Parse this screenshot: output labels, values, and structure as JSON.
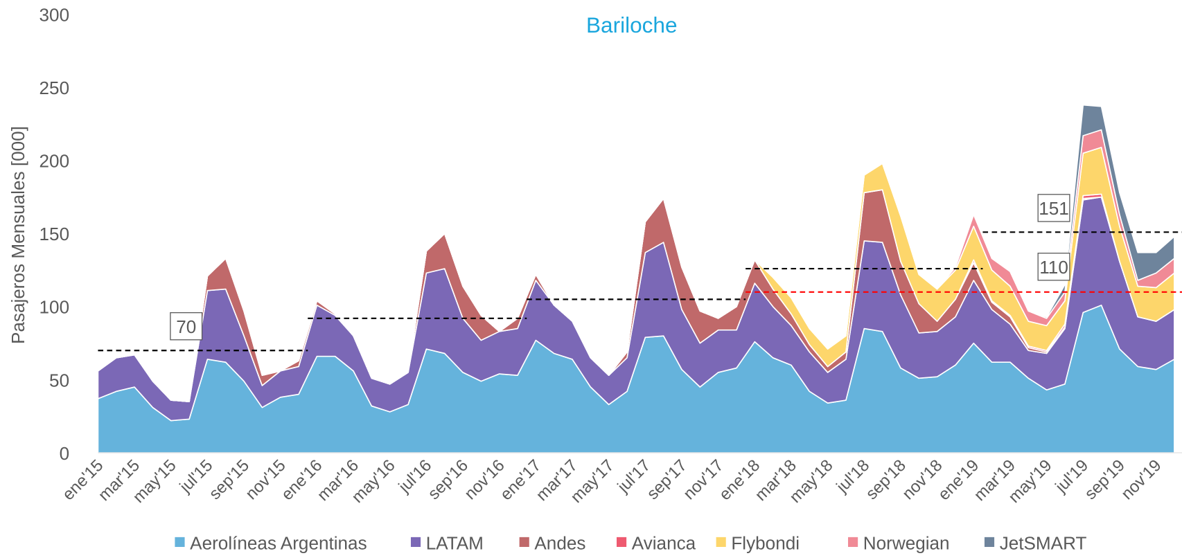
{
  "chart_data": {
    "type": "stacked_area",
    "title": "Bariloche",
    "ylabel": "Pasajeros Mensuales [000]",
    "ylim": [
      0,
      300
    ],
    "yticks": [
      0,
      50,
      100,
      150,
      200,
      250,
      300
    ],
    "grid": false,
    "legend": "bottom",
    "categories": [
      "ene'15",
      null,
      "mar'15",
      null,
      "may'15",
      null,
      "jul'15",
      null,
      "sep'15",
      null,
      "nov'15",
      null,
      "ene'16",
      null,
      "mar'16",
      null,
      "may'16",
      null,
      "jul'16",
      null,
      "sep'16",
      null,
      "nov'16",
      null,
      "ene'17",
      null,
      "mar'17",
      null,
      "may'17",
      null,
      "jul'17",
      null,
      "sep'17",
      null,
      "nov'17",
      null,
      "ene'18",
      null,
      "mar'18",
      null,
      "may'18",
      null,
      "jul'18",
      null,
      "sep'18",
      null,
      "nov'18",
      null,
      "ene'19",
      null,
      "mar'19",
      null,
      "may'19",
      null,
      "jul'19",
      null,
      "sep'19",
      null,
      "nov'19",
      null
    ],
    "series": [
      {
        "name": "Aerolíneas Argentinas",
        "color": "#65b3dc",
        "values": [
          37,
          42,
          45,
          31,
          22,
          23,
          64,
          62,
          49,
          31,
          38,
          40,
          66,
          66,
          56,
          32,
          28,
          33,
          71,
          68,
          55,
          49,
          54,
          53,
          77,
          68,
          64,
          45,
          33,
          42,
          79,
          80,
          57,
          45,
          55,
          58,
          76,
          65,
          60,
          42,
          34,
          36,
          85,
          83,
          58,
          51,
          52,
          60,
          75,
          62,
          62,
          51,
          43,
          47,
          96,
          101,
          71,
          59,
          57,
          64
        ]
      },
      {
        "name": "LATAM",
        "color": "#7b68b6",
        "values": [
          19,
          23,
          22,
          18,
          14,
          12,
          47,
          50,
          31,
          15,
          18,
          19,
          35,
          28,
          24,
          19,
          19,
          22,
          52,
          58,
          37,
          28,
          29,
          32,
          41,
          33,
          26,
          20,
          20,
          23,
          58,
          64,
          41,
          30,
          29,
          26,
          40,
          35,
          27,
          27,
          21,
          28,
          60,
          61,
          50,
          31,
          31,
          33,
          43,
          36,
          26,
          19,
          25,
          38,
          77,
          74,
          60,
          34,
          33,
          34
        ]
      },
      {
        "name": "Andes",
        "color": "#c0696a",
        "values": [
          0,
          0,
          0,
          0,
          0,
          0,
          10,
          21,
          17,
          7,
          0,
          4,
          3,
          1,
          0,
          0,
          0,
          0,
          15,
          24,
          22,
          17,
          0,
          7,
          4,
          0,
          0,
          0,
          0,
          4,
          21,
          30,
          29,
          22,
          8,
          16,
          16,
          12,
          8,
          5,
          4,
          5,
          33,
          36,
          23,
          20,
          7,
          12,
          12,
          5,
          5,
          2,
          1,
          1,
          1,
          0,
          0,
          0,
          0,
          0
        ]
      },
      {
        "name": "Avianca",
        "color": "#ee5a70",
        "values": [
          0,
          0,
          0,
          0,
          0,
          0,
          0,
          0,
          0,
          0,
          0,
          0,
          0,
          0,
          0,
          0,
          0,
          0,
          0,
          0,
          0,
          0,
          0,
          0,
          0,
          0,
          0,
          0,
          0,
          0,
          0,
          0,
          0,
          0,
          0,
          0,
          0,
          0,
          0,
          0,
          0,
          0,
          0,
          0,
          0,
          0,
          0,
          0,
          2,
          1,
          1,
          1,
          1,
          2,
          2,
          2,
          0,
          0,
          0,
          0
        ]
      },
      {
        "name": "Flybondi",
        "color": "#fdd66b",
        "values": [
          0,
          0,
          0,
          0,
          0,
          0,
          0,
          0,
          0,
          0,
          0,
          0,
          0,
          0,
          0,
          0,
          0,
          0,
          0,
          0,
          0,
          0,
          0,
          0,
          0,
          0,
          0,
          0,
          0,
          0,
          0,
          0,
          0,
          0,
          0,
          0,
          0,
          8,
          11,
          11,
          12,
          11,
          12,
          18,
          31,
          20,
          22,
          20,
          23,
          21,
          20,
          17,
          17,
          16,
          29,
          32,
          24,
          21,
          23,
          25
        ]
      },
      {
        "name": "Norwegian",
        "color": "#f08a96",
        "values": [
          0,
          0,
          0,
          0,
          0,
          0,
          0,
          0,
          0,
          0,
          0,
          0,
          0,
          0,
          0,
          0,
          0,
          0,
          0,
          0,
          0,
          0,
          0,
          0,
          0,
          0,
          0,
          0,
          0,
          0,
          0,
          0,
          0,
          0,
          0,
          0,
          0,
          0,
          0,
          0,
          0,
          0,
          0,
          0,
          0,
          0,
          0,
          2,
          8,
          8,
          10,
          7,
          5,
          6,
          12,
          12,
          8,
          4,
          10,
          10
        ]
      },
      {
        "name": "JetSMART",
        "color": "#6e849c",
        "values": [
          0,
          0,
          0,
          0,
          0,
          0,
          0,
          0,
          0,
          0,
          0,
          0,
          0,
          0,
          0,
          0,
          0,
          0,
          0,
          0,
          0,
          0,
          0,
          0,
          0,
          0,
          0,
          0,
          0,
          0,
          0,
          0,
          0,
          0,
          0,
          0,
          0,
          0,
          0,
          0,
          0,
          0,
          0,
          0,
          0,
          0,
          0,
          0,
          0,
          0,
          0,
          0,
          1,
          5,
          21,
          16,
          15,
          19,
          14,
          15
        ]
      }
    ],
    "reference_lines": [
      {
        "value": 70,
        "color": "#000000",
        "label": "70"
      },
      {
        "value": 92,
        "color": "#000000"
      },
      {
        "value": 105,
        "color": "#000000"
      },
      {
        "value": 126,
        "color": "#000000"
      },
      {
        "value": 151,
        "color": "#000000",
        "label": "151"
      },
      {
        "value": 110,
        "color": "#ff0000",
        "label": "110"
      }
    ]
  }
}
